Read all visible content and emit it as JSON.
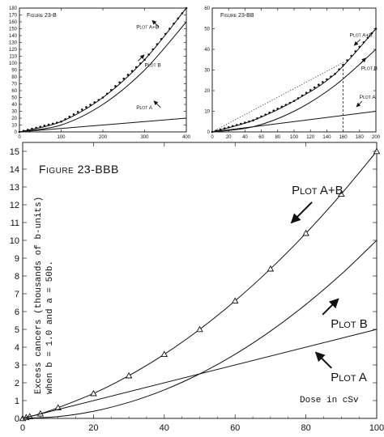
{
  "chart_data": [
    {
      "id": "panel-a",
      "type": "line",
      "title": "Figure 23-B",
      "xlim": [
        0,
        400
      ],
      "ylim": [
        0,
        180
      ],
      "xticks": [
        0,
        100,
        200,
        300,
        400
      ],
      "yticks": [
        0,
        10,
        20,
        30,
        40,
        50,
        60,
        70,
        80,
        90,
        100,
        110,
        120,
        130,
        140,
        150,
        160,
        170,
        180
      ],
      "grid": false,
      "series": [
        {
          "name": "Plot A+B",
          "marker": "dot",
          "x": [
            0,
            100,
            200,
            300,
            400
          ],
          "y": [
            0,
            15,
            50,
            105,
            180
          ]
        },
        {
          "name": "Plot B",
          "marker": "none",
          "x": [
            0,
            100,
            200,
            300,
            400
          ],
          "y": [
            0,
            10,
            40,
            90,
            160
          ]
        },
        {
          "name": "Plot A",
          "marker": "none",
          "x": [
            0,
            400
          ],
          "y": [
            0,
            20
          ]
        }
      ],
      "annotations": [
        {
          "text": "Plot A+B",
          "x": 280,
          "y": 150
        },
        {
          "text": "Plot B",
          "x": 300,
          "y": 95
        },
        {
          "text": "Plot A",
          "x": 280,
          "y": 33
        }
      ]
    },
    {
      "id": "panel-b",
      "type": "line",
      "title": "Figure 23-BB",
      "xlim": [
        0,
        200
      ],
      "ylim": [
        0,
        60
      ],
      "xticks": [
        0,
        20,
        40,
        60,
        80,
        100,
        120,
        140,
        160,
        180,
        200
      ],
      "yticks": [
        0,
        10,
        20,
        30,
        40,
        50,
        60
      ],
      "grid": false,
      "series": [
        {
          "name": "Plot A+B",
          "marker": "dot",
          "x": [
            0,
            50,
            100,
            150,
            200
          ],
          "y": [
            0,
            5.6,
            15,
            28.1,
            50
          ]
        },
        {
          "name": "Plot B",
          "marker": "none",
          "x": [
            0,
            50,
            100,
            150,
            200
          ],
          "y": [
            0,
            2.5,
            10,
            22.5,
            40
          ]
        },
        {
          "name": "Plot A",
          "marker": "none",
          "x": [
            0,
            200
          ],
          "y": [
            0,
            10
          ]
        }
      ],
      "reference_lines": [
        {
          "style": "dotted",
          "x": [
            0,
            160
          ],
          "y": [
            0,
            33.6
          ]
        },
        {
          "style": "dashed",
          "x": [
            160,
            160
          ],
          "y": [
            0,
            33.6
          ]
        }
      ],
      "annotations": [
        {
          "text": "Plot A+B",
          "x": 168,
          "y": 46
        },
        {
          "text": "Plot B",
          "x": 182,
          "y": 30
        },
        {
          "text": "Plot A",
          "x": 180,
          "y": 16
        }
      ]
    },
    {
      "id": "panel-c",
      "type": "line",
      "title": "Figure 23-BBB",
      "ylabel_lines": [
        "Excess cancers (thousands of b-units)",
        "when b = 1.0 and a = 50b."
      ],
      "dose_label": "Dose in cSv",
      "xlim": [
        0,
        100
      ],
      "ylim": [
        0,
        15.5
      ],
      "xticks": [
        0,
        20,
        40,
        60,
        80,
        100
      ],
      "yticks": [
        0,
        1,
        2,
        3,
        4,
        5,
        6,
        7,
        8,
        9,
        10,
        11,
        12,
        13,
        14,
        15
      ],
      "grid": false,
      "series": [
        {
          "name": "Plot A+B",
          "marker": "triangle",
          "x": [
            0,
            1,
            2,
            5,
            10,
            20,
            30,
            40,
            50,
            60,
            70,
            80,
            90,
            100
          ],
          "y": [
            0,
            0.05,
            0.1,
            0.26,
            0.6,
            1.4,
            2.4,
            3.6,
            5.0,
            6.6,
            8.4,
            10.4,
            12.6,
            15.0
          ]
        },
        {
          "name": "Plot B",
          "marker": "none",
          "x": [
            0,
            10,
            20,
            30,
            40,
            50,
            60,
            70,
            80,
            90,
            100
          ],
          "y": [
            0,
            0.1,
            0.4,
            0.9,
            1.6,
            2.5,
            3.6,
            4.9,
            6.4,
            8.1,
            10.0
          ]
        },
        {
          "name": "Plot A",
          "marker": "none",
          "x": [
            0,
            100
          ],
          "y": [
            0,
            5
          ]
        }
      ],
      "annotations": [
        {
          "text": "Plot A+B",
          "x": 76,
          "y": 12.6
        },
        {
          "text": "Plot B",
          "x": 87,
          "y": 5.1
        },
        {
          "text": "Plot A",
          "x": 87,
          "y": 2.1
        }
      ]
    }
  ]
}
